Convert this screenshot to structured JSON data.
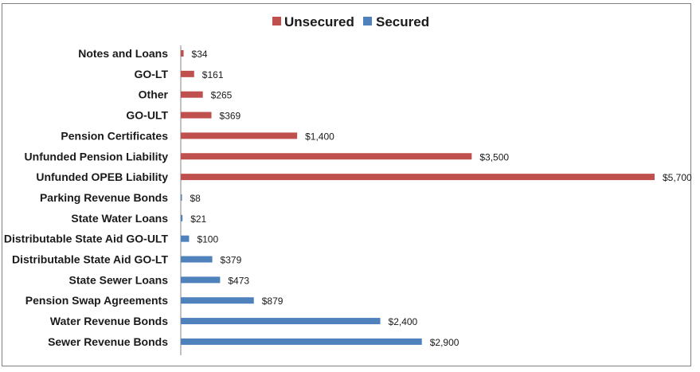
{
  "chart_data": {
    "type": "bar",
    "orientation": "horizontal",
    "title": "",
    "xlabel": "",
    "ylabel": "",
    "legend_position": "top",
    "grid": false,
    "xlim": [
      0,
      5700
    ],
    "colors": {
      "Unsecured": "#c0504d",
      "Secured": "#4f81bd"
    },
    "legend": [
      {
        "name": "Unsecured",
        "color": "#c0504d"
      },
      {
        "name": "Secured",
        "color": "#4f81bd"
      }
    ],
    "bars": [
      {
        "category": "Notes and Loans",
        "value": 34,
        "label": "$34",
        "series": "Unsecured"
      },
      {
        "category": "GO-LT",
        "value": 161,
        "label": "$161",
        "series": "Unsecured"
      },
      {
        "category": "Other",
        "value": 265,
        "label": "$265",
        "series": "Unsecured"
      },
      {
        "category": "GO-ULT",
        "value": 369,
        "label": "$369",
        "series": "Unsecured"
      },
      {
        "category": "Pension Certificates",
        "value": 1400,
        "label": "$1,400",
        "series": "Unsecured"
      },
      {
        "category": "Unfunded Pension Liability",
        "value": 3500,
        "label": "$3,500",
        "series": "Unsecured"
      },
      {
        "category": "Unfunded OPEB Liability",
        "value": 5700,
        "label": "$5,700",
        "series": "Unsecured"
      },
      {
        "category": "Parking Revenue Bonds",
        "value": 8,
        "label": "$8",
        "series": "Secured"
      },
      {
        "category": "State Water Loans",
        "value": 21,
        "label": "$21",
        "series": "Secured"
      },
      {
        "category": "Distributable State Aid GO-ULT",
        "value": 100,
        "label": "$100",
        "series": "Secured"
      },
      {
        "category": "Distributable State Aid GO-LT",
        "value": 379,
        "label": "$379",
        "series": "Secured"
      },
      {
        "category": "State Sewer Loans",
        "value": 473,
        "label": "$473",
        "series": "Secured"
      },
      {
        "category": "Pension Swap Agreements",
        "value": 879,
        "label": "$879",
        "series": "Secured"
      },
      {
        "category": "Water Revenue  Bonds",
        "value": 2400,
        "label": "$2,400",
        "series": "Secured"
      },
      {
        "category": "Sewer Revenue Bonds",
        "value": 2900,
        "label": "$2,900",
        "series": "Secured"
      }
    ]
  }
}
